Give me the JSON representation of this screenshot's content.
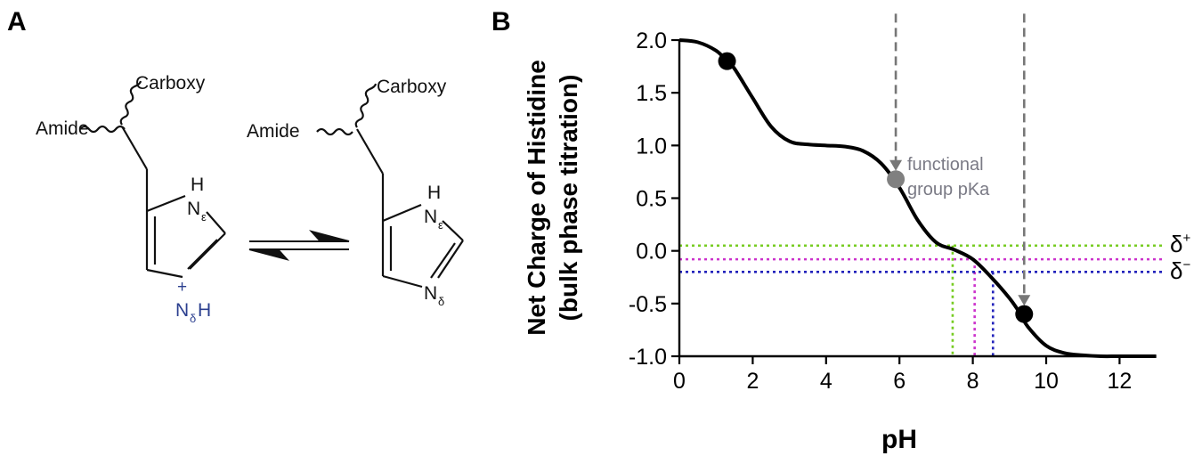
{
  "panel_a": {
    "label": "A",
    "left_structure": {
      "amide": "Amide",
      "carboxy": "Carboxy",
      "n_epsilon_h": "H",
      "n_epsilon": "N",
      "epsilon": "ε",
      "n_delta": "N",
      "delta": "δ",
      "n_delta_h": "H",
      "plus": "+"
    },
    "right_structure": {
      "amide": "Amide",
      "carboxy": "Carboxy",
      "n_epsilon_h": "H",
      "n_epsilon": "N",
      "epsilon": "ε",
      "n_delta": "N",
      "delta": "δ"
    },
    "colors": {
      "protonated_n": "#2b3f8f",
      "bonds": "#111111"
    }
  },
  "panel_b": {
    "label": "B"
  },
  "chart_data": {
    "type": "line",
    "title": "",
    "xlabel": "pH",
    "ylabel_line1": "Net Charge of Histidine",
    "ylabel_line2": "(bulk phase titration)",
    "xlim": [
      0,
      13
    ],
    "ylim": [
      -1.0,
      2.0
    ],
    "x_ticks": [
      0,
      2,
      4,
      6,
      8,
      10,
      12
    ],
    "x_tick_labels": [
      "0",
      "2",
      "4",
      "6",
      "8",
      "10",
      "12"
    ],
    "y_ticks": [
      2.0,
      1.5,
      1.0,
      0.5,
      0.0,
      -0.5,
      -1.0
    ],
    "y_tick_labels": [
      "2.0",
      "1.5",
      "1.0",
      "0.5",
      "0.0",
      "-0.5",
      "-1.0"
    ],
    "grid": false,
    "series": [
      {
        "color": "#000000",
        "x": [
          0,
          0.5,
          1.0,
          1.3,
          1.5,
          2.0,
          2.5,
          3.0,
          3.5,
          4.0,
          4.5,
          5.0,
          5.5,
          6.0,
          6.5,
          7.0,
          7.5,
          8.0,
          8.5,
          9.0,
          9.3,
          9.5,
          10.0,
          10.5,
          11.0,
          11.5,
          12.0,
          13.0
        ],
        "y": [
          2.0,
          1.98,
          1.9,
          1.8,
          1.73,
          1.45,
          1.18,
          1.04,
          1.01,
          1.0,
          0.99,
          0.95,
          0.83,
          0.6,
          0.29,
          0.08,
          0.01,
          -0.08,
          -0.25,
          -0.45,
          -0.6,
          -0.72,
          -0.9,
          -0.97,
          -0.99,
          -1.0,
          -1.0,
          -1.0
        ]
      }
    ],
    "markers": [
      {
        "x": 1.3,
        "y": 1.8,
        "color": "#000000"
      },
      {
        "x": 5.9,
        "y": 0.68,
        "color": "#808080"
      },
      {
        "x": 9.4,
        "y": -0.6,
        "color": "#000000"
      }
    ],
    "arrows": [
      {
        "x": 5.9,
        "y_from": 2.25,
        "y_to": 0.76,
        "color": "#777777"
      },
      {
        "x": 9.4,
        "y_from": 2.25,
        "y_to": -0.52,
        "color": "#777777"
      }
    ],
    "annotation": {
      "line1": "functional",
      "line2": "group pKa",
      "color": "#7a7a85"
    },
    "reference_lines": [
      {
        "y": 0.05,
        "x_drop": 7.45,
        "color": "#77cc22"
      },
      {
        "y": -0.08,
        "x_drop": 8.05,
        "color": "#cc33cc"
      },
      {
        "y": -0.2,
        "x_drop": 8.55,
        "color": "#2222bb"
      }
    ],
    "right_labels": [
      {
        "base": "δ",
        "sup": "+"
      },
      {
        "base": "δ",
        "sup": "−"
      }
    ]
  }
}
